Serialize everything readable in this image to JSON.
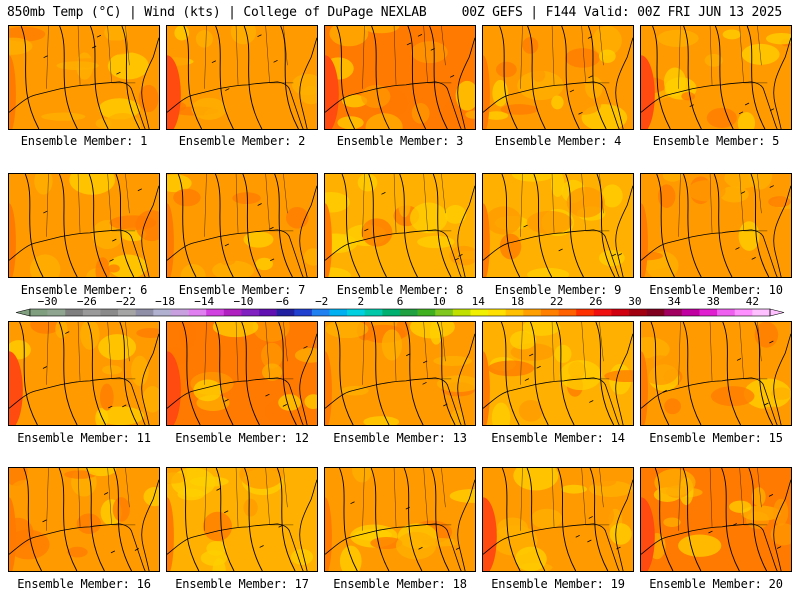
{
  "header": {
    "left": "850mb Temp (°C) | Wind (kts) | College of DuPage NEXLAB",
    "right": "00Z GEFS | F144 Valid: 00Z FRI JUN 13 2025"
  },
  "members": [
    {
      "label": "Ensemble Member: 1",
      "tone": 1
    },
    {
      "label": "Ensemble Member: 2",
      "tone": 2
    },
    {
      "label": "Ensemble Member: 3",
      "tone": 3
    },
    {
      "label": "Ensemble Member: 4",
      "tone": 1
    },
    {
      "label": "Ensemble Member: 5",
      "tone": 2
    },
    {
      "label": "Ensemble Member: 6",
      "tone": 1
    },
    {
      "label": "Ensemble Member: 7",
      "tone": 1
    },
    {
      "label": "Ensemble Member: 8",
      "tone": 0
    },
    {
      "label": "Ensemble Member: 9",
      "tone": 0
    },
    {
      "label": "Ensemble Member: 10",
      "tone": 1
    },
    {
      "label": "Ensemble Member: 11",
      "tone": 2
    },
    {
      "label": "Ensemble Member: 12",
      "tone": 3
    },
    {
      "label": "Ensemble Member: 13",
      "tone": 1
    },
    {
      "label": "Ensemble Member: 14",
      "tone": 0
    },
    {
      "label": "Ensemble Member: 15",
      "tone": 1
    },
    {
      "label": "Ensemble Member: 16",
      "tone": 1
    },
    {
      "label": "Ensemble Member: 17",
      "tone": 0
    },
    {
      "label": "Ensemble Member: 18",
      "tone": 1
    },
    {
      "label": "Ensemble Member: 19",
      "tone": 2
    },
    {
      "label": "Ensemble Member: 20",
      "tone": 3
    }
  ],
  "colorbar": {
    "tick_labels": [
      "-30",
      "-26",
      "-22",
      "-18",
      "-14",
      "-10",
      "-6",
      "-2",
      "2",
      "6",
      "10",
      "14",
      "18",
      "22",
      "26",
      "30",
      "34",
      "38",
      "42"
    ],
    "colors": [
      "#7f9f7f",
      "#8fa58f",
      "#7f7f7f",
      "#9a9a9a",
      "#8a8a8a",
      "#a5a5a5",
      "#8f8fa8",
      "#b0b0d0",
      "#c8a0e0",
      "#e080f0",
      "#d040e0",
      "#b020c0",
      "#8020c0",
      "#6010b0",
      "#2020a0",
      "#2040d0",
      "#2080f0",
      "#00b0f0",
      "#00d0e0",
      "#00c8a8",
      "#00b070",
      "#20a040",
      "#40b020",
      "#80c820",
      "#c0e000",
      "#f0f000",
      "#ffe000",
      "#ffc000",
      "#ffa000",
      "#ff8000",
      "#ff6000",
      "#ff3000",
      "#f01010",
      "#d00010",
      "#a00010",
      "#800020",
      "#a00060",
      "#c000a0",
      "#e020d0",
      "#f060f0",
      "#ff90ff",
      "#ffc0ff"
    ]
  },
  "palette": {
    "yellow": "#ffd000",
    "amber": "#ffb000",
    "orange": "#ff9a00",
    "deep_orange": "#ff7a00",
    "red_orange": "#ff4a10",
    "outline": "#000000"
  }
}
